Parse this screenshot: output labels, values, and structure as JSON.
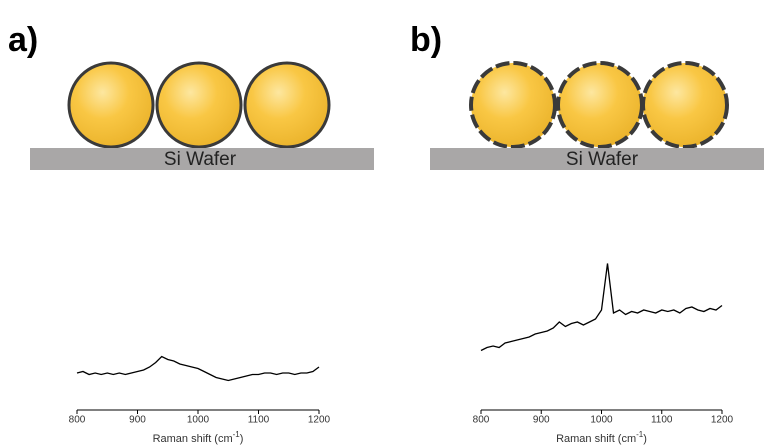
{
  "panels": [
    {
      "label": "a)",
      "substrate": "Si Wafer"
    },
    {
      "label": "b)",
      "substrate": "Si Wafer"
    }
  ],
  "chart_data": [
    {
      "type": "line",
      "color": "#000000",
      "x": [
        800,
        810,
        820,
        830,
        840,
        850,
        860,
        870,
        880,
        890,
        900,
        910,
        920,
        930,
        940,
        950,
        960,
        970,
        980,
        990,
        1000,
        1010,
        1020,
        1030,
        1040,
        1050,
        1060,
        1070,
        1080,
        1090,
        1100,
        1110,
        1120,
        1130,
        1140,
        1150,
        1160,
        1170,
        1180,
        1190,
        1200
      ],
      "values": [
        18,
        19,
        17,
        18,
        17,
        18,
        17,
        18,
        17,
        18,
        19,
        20,
        22,
        25,
        29,
        27,
        26,
        24,
        23,
        22,
        21,
        19,
        17,
        15,
        14,
        13,
        14,
        15,
        16,
        17,
        17,
        18,
        18,
        17,
        18,
        18,
        17,
        18,
        18,
        19,
        22
      ],
      "xlim": [
        800,
        1200
      ],
      "xticks": [
        800,
        900,
        1000,
        1100,
        1200
      ],
      "ylim": [
        0,
        100
      ],
      "x_label": [
        "Raman shift (cm",
        "-1",
        ")"
      ]
    },
    {
      "type": "line",
      "color": "#000000",
      "x": [
        800,
        810,
        820,
        830,
        840,
        850,
        860,
        870,
        880,
        890,
        900,
        910,
        920,
        930,
        940,
        950,
        960,
        970,
        980,
        990,
        1000,
        1010,
        1020,
        1030,
        1040,
        1050,
        1060,
        1070,
        1080,
        1090,
        1100,
        1110,
        1120,
        1130,
        1140,
        1150,
        1160,
        1170,
        1180,
        1190,
        1200
      ],
      "values": [
        33,
        35,
        36,
        35,
        38,
        39,
        40,
        41,
        42,
        44,
        45,
        46,
        48,
        52,
        49,
        51,
        52,
        50,
        52,
        54,
        60,
        91,
        58,
        60,
        57,
        59,
        58,
        60,
        59,
        58,
        60,
        59,
        60,
        58,
        61,
        62,
        60,
        59,
        61,
        60,
        63
      ],
      "xlim": [
        800,
        1200
      ],
      "xticks": [
        800,
        900,
        1000,
        1100,
        1200
      ],
      "ylim": [
        0,
        100
      ],
      "x_label": [
        "Raman shift (cm",
        "-1",
        ")"
      ]
    }
  ]
}
